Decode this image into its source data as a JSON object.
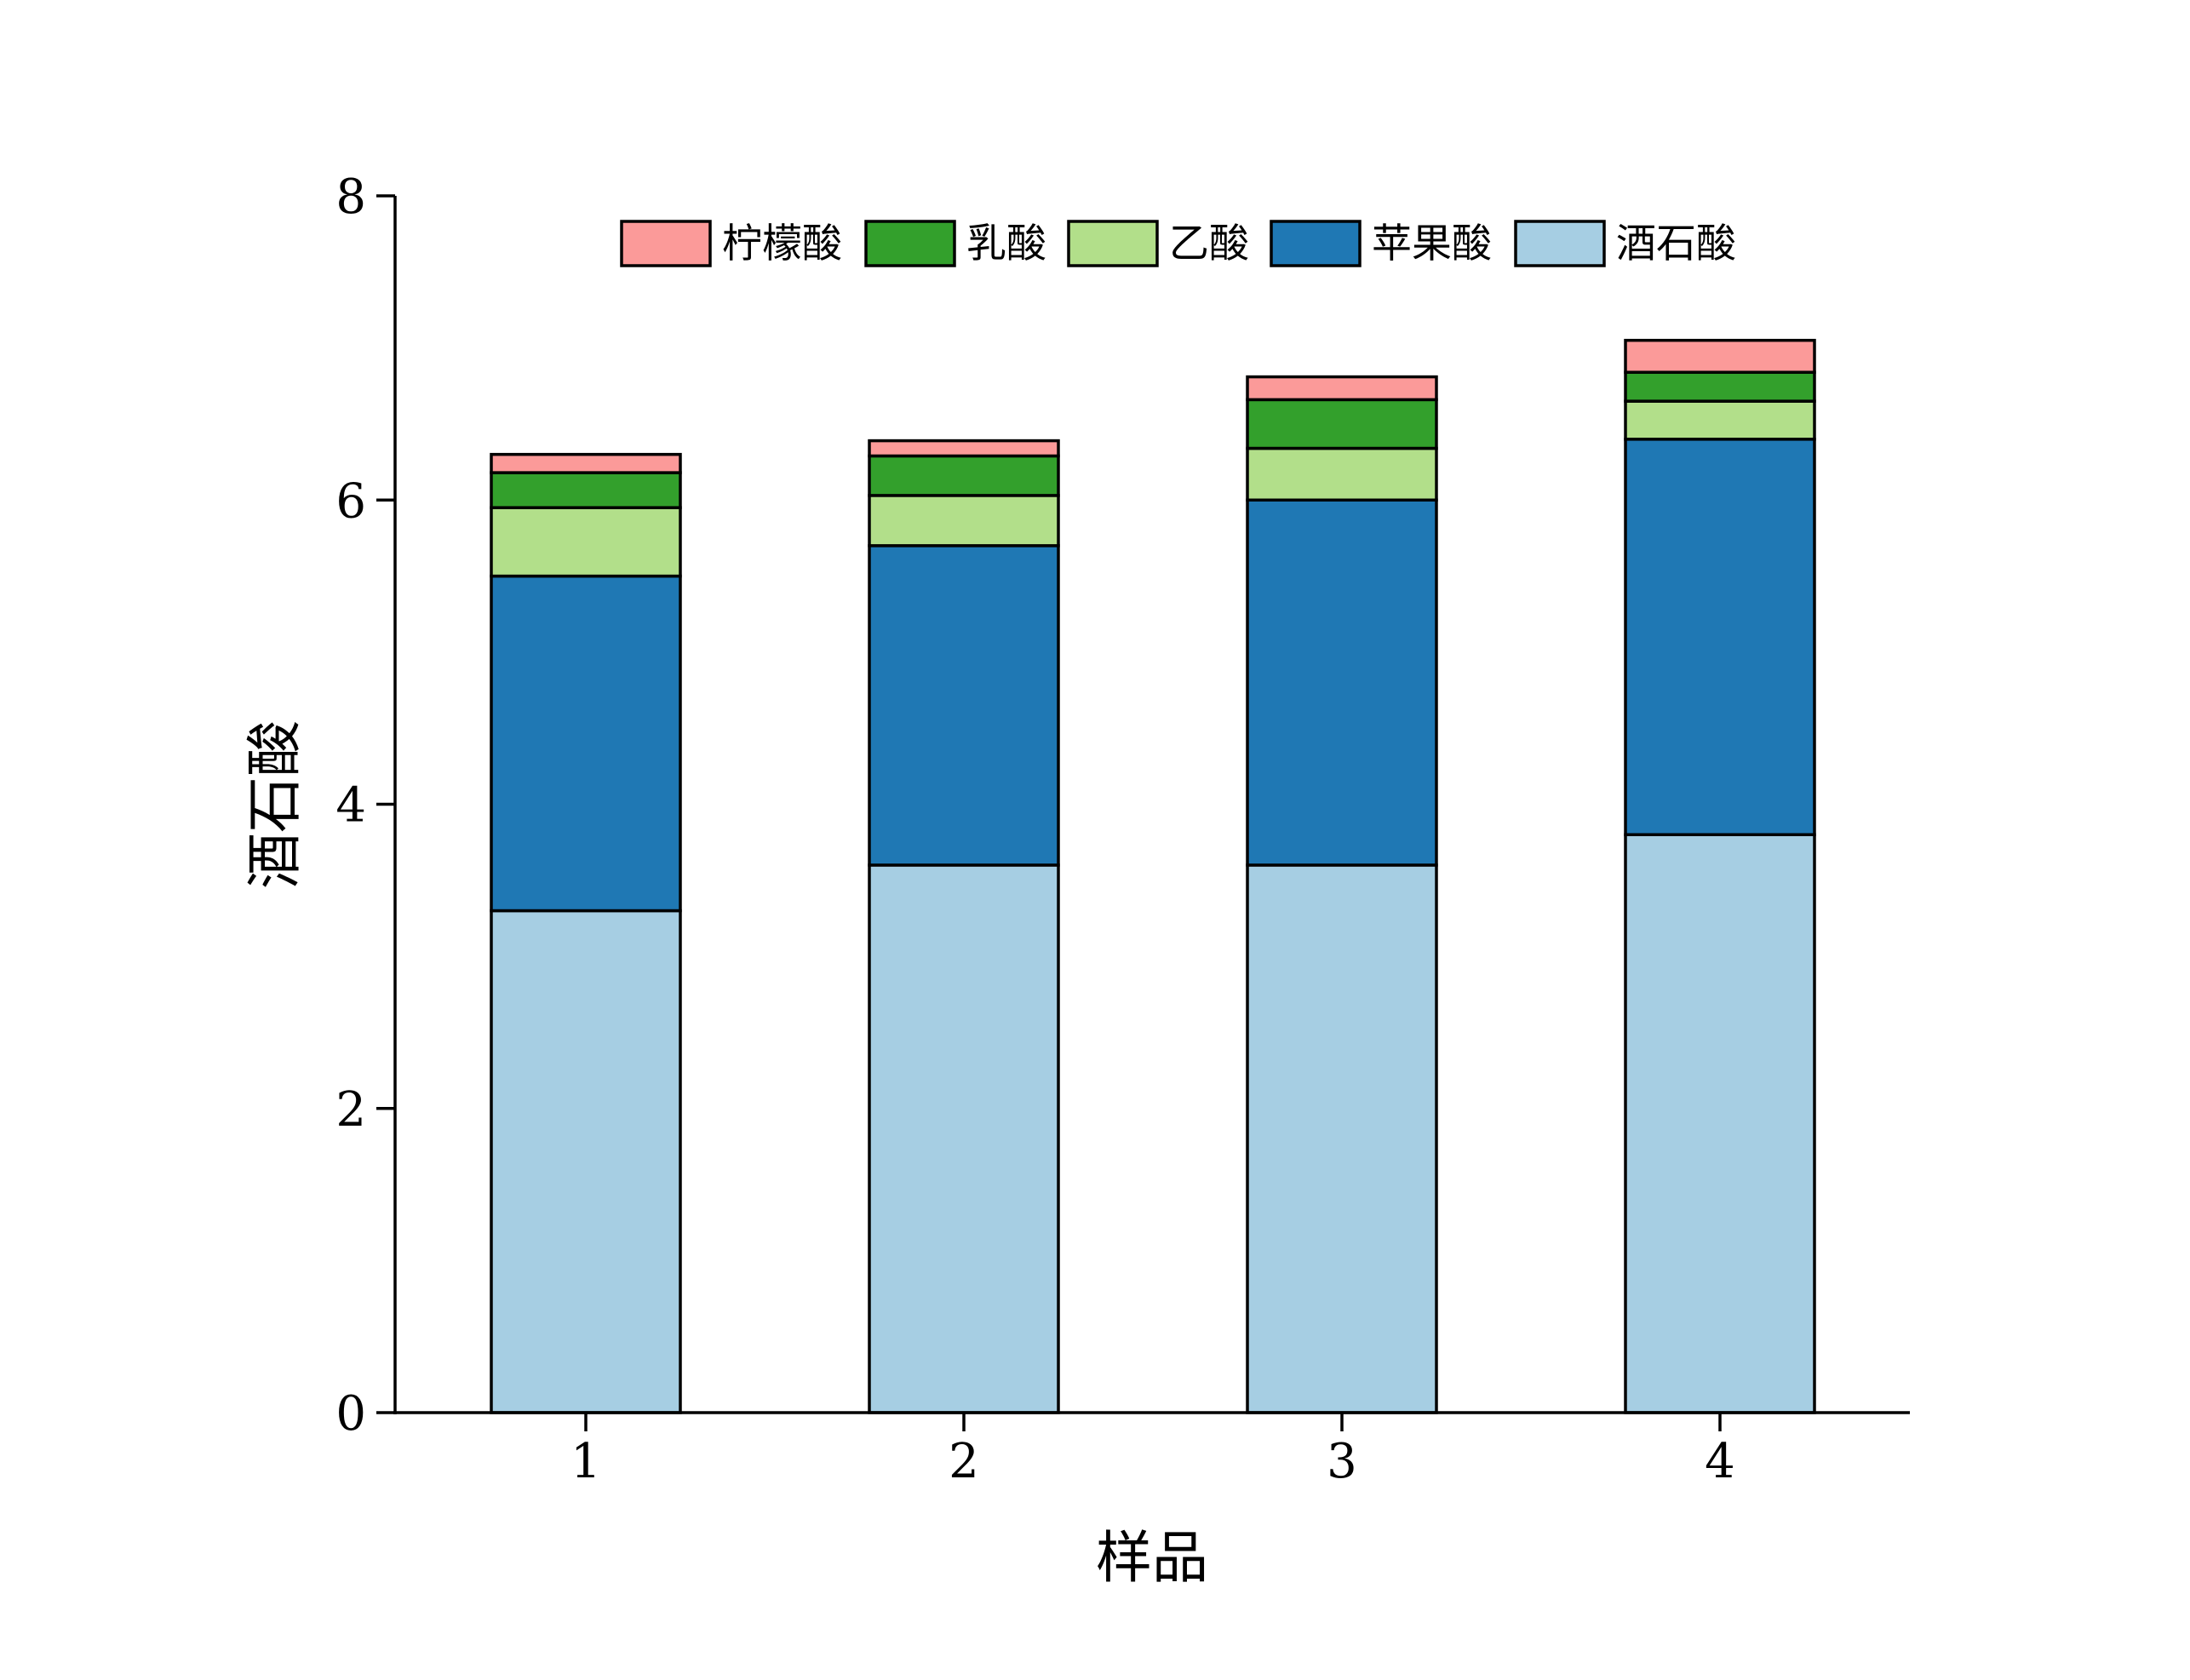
{
  "chart_data": {
    "type": "bar",
    "stacked": true,
    "categories": [
      "1",
      "2",
      "3",
      "4"
    ],
    "series": [
      {
        "name": "酒石酸",
        "color": "#a6cee3",
        "values": [
          3.3,
          3.6,
          3.6,
          3.8
        ]
      },
      {
        "name": "苹果酸",
        "color": "#1f78b4",
        "values": [
          2.2,
          2.1,
          2.4,
          2.6
        ]
      },
      {
        "name": "乙酸",
        "color": "#b2df8a",
        "values": [
          0.45,
          0.33,
          0.34,
          0.25
        ]
      },
      {
        "name": "乳酸",
        "color": "#33a02c",
        "values": [
          0.23,
          0.26,
          0.32,
          0.19
        ]
      },
      {
        "name": "柠檬酸",
        "color": "#fb9a99",
        "values": [
          0.12,
          0.1,
          0.15,
          0.21
        ]
      }
    ],
    "legend_order": [
      "柠檬酸",
      "乳酸",
      "乙酸",
      "苹果酸",
      "酒石酸"
    ],
    "legend_position": "top-center",
    "xlabel": "样品",
    "ylabel": "酒石酸",
    "ylim": [
      0,
      8
    ],
    "yticks": [
      0,
      2,
      4,
      6,
      8
    ],
    "grid": false
  }
}
